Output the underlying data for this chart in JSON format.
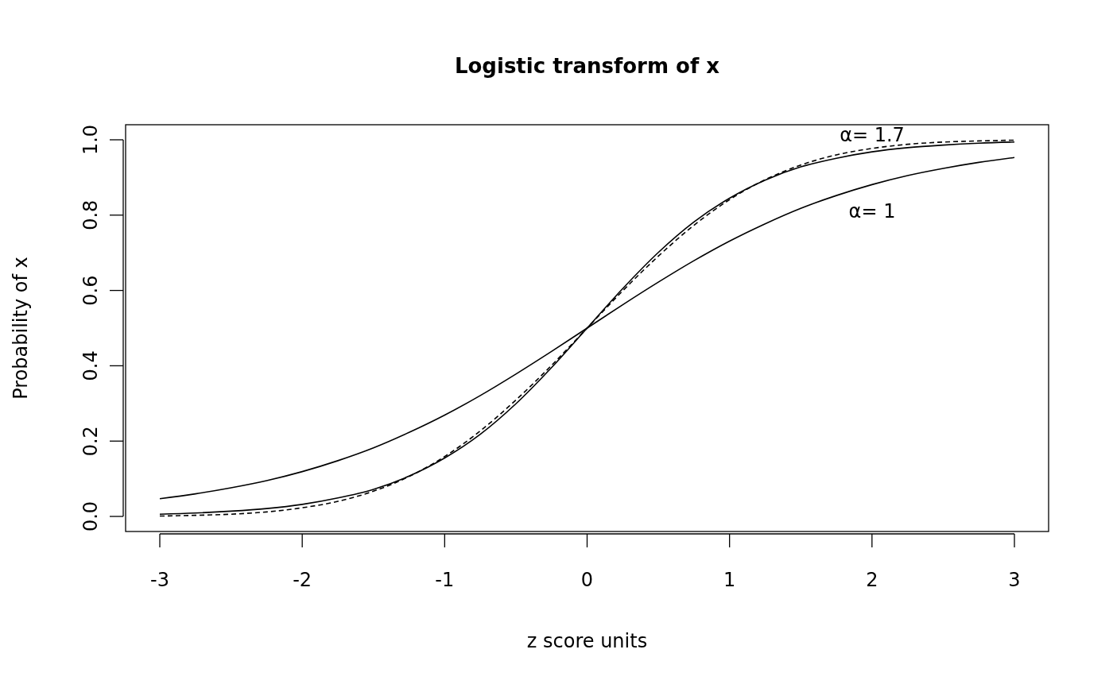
{
  "chart_data": {
    "type": "line",
    "title": "Logistic transform of x",
    "xlabel": "z score units",
    "ylabel": "Probability of x",
    "x": [
      -3,
      -2.75,
      -2.5,
      -2.25,
      -2,
      -1.75,
      -1.5,
      -1.25,
      -1,
      -0.75,
      -0.5,
      -0.25,
      0,
      0.25,
      0.5,
      0.75,
      1,
      1.25,
      1.5,
      1.75,
      2,
      2.25,
      2.5,
      2.75,
      3
    ],
    "series": [
      {
        "color": "#000000",
        "line_style": "solid",
        "values": [
          0.047,
          0.06,
          0.076,
          0.095,
          0.119,
          0.148,
          0.182,
          0.223,
          0.269,
          0.321,
          0.378,
          0.438,
          0.5,
          0.562,
          0.622,
          0.679,
          0.731,
          0.777,
          0.818,
          0.852,
          0.881,
          0.905,
          0.924,
          0.94,
          0.953
        ]
      },
      {
        "color": "#000000",
        "line_style": "solid",
        "values": [
          0.006,
          0.009,
          0.014,
          0.021,
          0.032,
          0.049,
          0.072,
          0.107,
          0.155,
          0.218,
          0.299,
          0.395,
          0.5,
          0.605,
          0.701,
          0.782,
          0.845,
          0.893,
          0.928,
          0.951,
          0.968,
          0.979,
          0.986,
          0.991,
          0.994
        ]
      },
      {
        "color": "#000000",
        "line_style": "dashed",
        "values": [
          0.001,
          0.003,
          0.006,
          0.012,
          0.023,
          0.04,
          0.067,
          0.106,
          0.159,
          0.227,
          0.309,
          0.401,
          0.5,
          0.599,
          0.691,
          0.773,
          0.841,
          0.894,
          0.933,
          0.96,
          0.977,
          0.988,
          0.994,
          0.997,
          0.999
        ]
      }
    ],
    "xlim": [
      -3.24,
      3.24
    ],
    "ylim": [
      -0.04,
      1.04
    ],
    "xticks": [
      -3,
      -2,
      -1,
      0,
      1,
      2,
      3
    ],
    "yticks": [
      {
        "value": 0,
        "label": "0.0"
      },
      {
        "value": 0.2,
        "label": "0.2"
      },
      {
        "value": 0.4,
        "label": "0.4"
      },
      {
        "value": 0.6,
        "label": "0.6"
      },
      {
        "value": 0.8,
        "label": "0.8"
      },
      {
        "value": 1,
        "label": "1.0"
      }
    ],
    "annotations": [
      "α= 1.7",
      "α= 1"
    ]
  }
}
